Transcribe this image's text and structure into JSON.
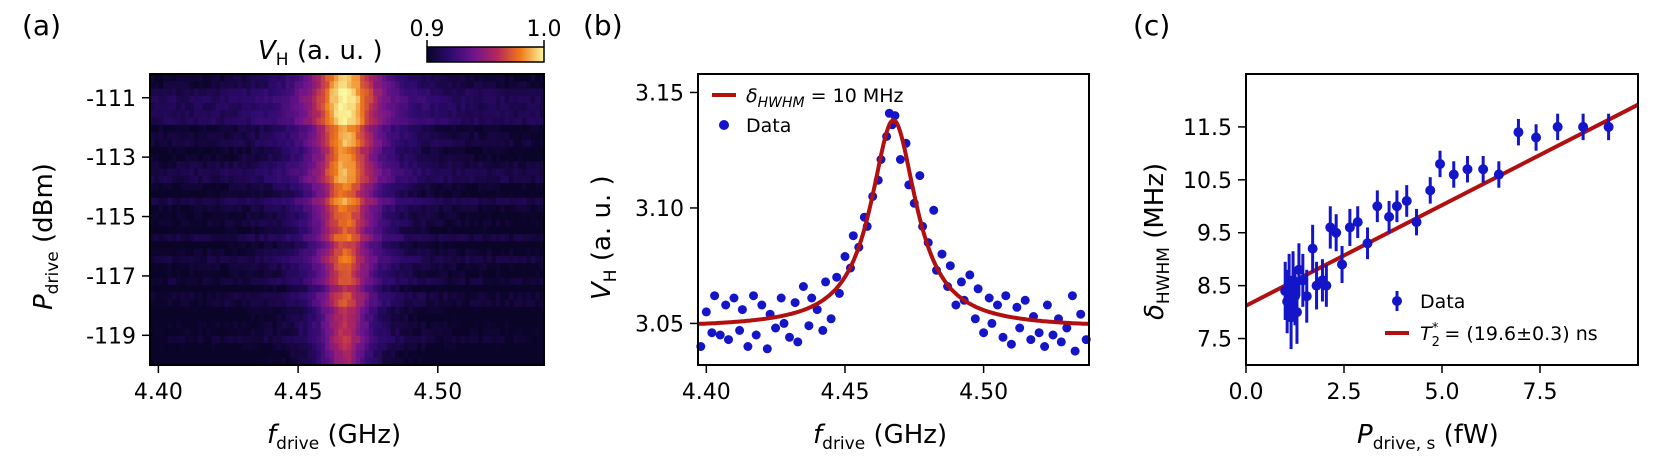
{
  "colors": {
    "data": "#1414c8",
    "fit": "#b01010"
  },
  "chart_data": [
    {
      "id": "a",
      "panel_label": "(a)",
      "type": "heatmap",
      "title": "",
      "xlabel": {
        "main": "f",
        "sub": "drive",
        "unit": "(GHz)"
      },
      "ylabel": {
        "main": "P",
        "sub": "drive",
        "unit": "(dBm)"
      },
      "xlim": [
        4.397,
        4.538
      ],
      "ylim": [
        -120,
        -110.2
      ],
      "xticks": [
        {
          "value": 4.4,
          "label": "4.40"
        },
        {
          "value": 4.45,
          "label": "4.45"
        },
        {
          "value": 4.5,
          "label": "4.50"
        }
      ],
      "yticks": [
        {
          "value": -111,
          "label": "-111"
        },
        {
          "value": -113,
          "label": "-113"
        },
        {
          "value": -115,
          "label": "-115"
        },
        {
          "value": -117,
          "label": "-117"
        },
        {
          "value": -119,
          "label": "-119"
        }
      ],
      "colormap": "inferno-like",
      "z_model": {
        "center_ghz": 4.4668,
        "floor": 0.905,
        "top_power_dbm": -110.5,
        "bottom_power_dbm": -120,
        "peak_top": 1.0,
        "peak_bottom": 0.955,
        "hwhm_top_ghz": 0.0115,
        "hwhm_bottom_ghz": 0.0082
      },
      "colorbar": {
        "label_main": "V",
        "label_sub": "H",
        "label_unit": "(a. u. )",
        "min_label": "0.9",
        "max_label": "1.0",
        "min": 0.9,
        "max": 1.0
      }
    },
    {
      "id": "b",
      "panel_label": "(b)",
      "type": "scatter",
      "xlabel": {
        "main": "f",
        "sub": "drive",
        "unit": "(GHz)"
      },
      "ylabel": {
        "main": "V",
        "sub": "H",
        "unit": "(a. u. )"
      },
      "xlim": [
        4.397,
        4.538
      ],
      "ylim": [
        3.032,
        3.158
      ],
      "xticks": [
        {
          "value": 4.4,
          "label": "4.40"
        },
        {
          "value": 4.45,
          "label": "4.45"
        },
        {
          "value": 4.5,
          "label": "4.50"
        }
      ],
      "yticks": [
        {
          "value": 3.05,
          "label": "3.05"
        },
        {
          "value": 3.1,
          "label": "3.10"
        },
        {
          "value": 3.15,
          "label": "3.15"
        }
      ],
      "legend": {
        "location": "top-left",
        "fit_label_delta": "δ",
        "fit_label_sub": "HWHM",
        "fit_label_rest": " = 10 MHz",
        "data_label": "Data"
      },
      "fit": {
        "type": "lorentzian",
        "center": 4.4675,
        "hwhm": 0.01,
        "baseline": 3.048,
        "amplitude": 0.09
      },
      "series": [
        {
          "name": "Data",
          "x": [
            4.398,
            4.4,
            4.402,
            4.403,
            4.405,
            4.407,
            4.408,
            4.41,
            4.412,
            4.413,
            4.415,
            4.417,
            4.418,
            4.42,
            4.422,
            4.423,
            4.425,
            4.427,
            4.428,
            4.43,
            4.432,
            4.433,
            4.435,
            4.437,
            4.438,
            4.44,
            4.442,
            4.443,
            4.445,
            4.447,
            4.448,
            4.45,
            4.452,
            4.453,
            4.455,
            4.457,
            4.458,
            4.46,
            4.462,
            4.463,
            4.465,
            4.466,
            4.467,
            4.468,
            4.47,
            4.472,
            4.473,
            4.475,
            4.477,
            4.478,
            4.48,
            4.482,
            4.483,
            4.485,
            4.487,
            4.488,
            4.49,
            4.492,
            4.493,
            4.495,
            4.497,
            4.498,
            4.5,
            4.502,
            4.503,
            4.505,
            4.507,
            4.508,
            4.51,
            4.512,
            4.513,
            4.515,
            4.517,
            4.518,
            4.52,
            4.522,
            4.523,
            4.525,
            4.527,
            4.528,
            4.53,
            4.532,
            4.533,
            4.535,
            4.537
          ],
          "y": [
            3.04,
            3.055,
            3.046,
            3.062,
            3.045,
            3.058,
            3.043,
            3.061,
            3.047,
            3.056,
            3.04,
            3.062,
            3.045,
            3.058,
            3.039,
            3.054,
            3.048,
            3.061,
            3.05,
            3.044,
            3.059,
            3.042,
            3.066,
            3.049,
            3.061,
            3.056,
            3.047,
            3.068,
            3.052,
            3.07,
            3.063,
            3.079,
            3.074,
            3.088,
            3.083,
            3.096,
            3.092,
            3.105,
            3.112,
            3.121,
            3.131,
            3.141,
            3.136,
            3.14,
            3.121,
            3.128,
            3.11,
            3.102,
            3.114,
            3.092,
            3.085,
            3.099,
            3.073,
            3.08,
            3.066,
            3.075,
            3.058,
            3.068,
            3.06,
            3.071,
            3.052,
            3.065,
            3.046,
            3.061,
            3.05,
            3.058,
            3.044,
            3.062,
            3.041,
            3.057,
            3.048,
            3.06,
            3.043,
            3.053,
            3.046,
            3.04,
            3.058,
            3.045,
            3.052,
            3.042,
            3.048,
            3.062,
            3.038,
            3.054,
            3.043
          ]
        }
      ]
    },
    {
      "id": "c",
      "panel_label": "(c)",
      "type": "scatter",
      "xlabel": {
        "main": "P",
        "sub": "drive, s",
        "unit": "(fW)"
      },
      "ylabel": {
        "main": "δ",
        "sub": "HWHM",
        "unit": "(MHz)"
      },
      "xlim": [
        0,
        10
      ],
      "ylim": [
        7.0,
        12.5
      ],
      "xticks": [
        {
          "value": 0,
          "label": "0.0"
        },
        {
          "value": 2.5,
          "label": "2.5"
        },
        {
          "value": 5.0,
          "label": "5.0"
        },
        {
          "value": 7.5,
          "label": "7.5"
        }
      ],
      "yticks": [
        {
          "value": 7.5,
          "label": "7.5"
        },
        {
          "value": 8.5,
          "label": "8.5"
        },
        {
          "value": 9.5,
          "label": "9.5"
        },
        {
          "value": 10.5,
          "label": "10.5"
        },
        {
          "value": 11.5,
          "label": "11.5"
        }
      ],
      "legend": {
        "location": "bottom-right",
        "data_label": "Data",
        "fit_label_main": "T",
        "fit_label_sub": "2",
        "fit_label_sup": "*",
        "fit_label_rest": " = (19.6±0.3) ns"
      },
      "fit": {
        "type": "line",
        "intercept": 8.12,
        "slope": 0.38
      },
      "series": [
        {
          "name": "Data",
          "x": [
            1.0,
            1.05,
            1.1,
            1.15,
            1.2,
            1.25,
            1.3,
            1.35,
            1.45,
            1.55,
            1.7,
            1.8,
            1.95,
            2.05,
            2.15,
            2.3,
            2.45,
            2.65,
            2.85,
            3.1,
            3.35,
            3.65,
            3.85,
            4.1,
            4.35,
            4.7,
            4.95,
            5.3,
            5.65,
            6.05,
            6.45,
            6.95,
            7.4,
            7.95,
            8.6,
            9.25
          ],
          "y": [
            8.4,
            8.2,
            8.5,
            7.9,
            8.6,
            8.3,
            8.0,
            8.8,
            8.6,
            8.3,
            9.2,
            8.5,
            8.6,
            8.5,
            9.6,
            9.5,
            8.9,
            9.6,
            9.7,
            9.3,
            10.0,
            9.8,
            10.0,
            10.1,
            9.7,
            10.3,
            10.8,
            10.6,
            10.7,
            10.7,
            10.6,
            11.4,
            11.3,
            11.5,
            11.5,
            11.5
          ],
          "err": [
            0.55,
            0.6,
            0.6,
            0.6,
            0.55,
            0.55,
            0.6,
            0.5,
            0.5,
            0.5,
            0.45,
            0.45,
            0.4,
            0.4,
            0.4,
            0.35,
            0.35,
            0.35,
            0.3,
            0.3,
            0.3,
            0.3,
            0.3,
            0.3,
            0.25,
            0.25,
            0.25,
            0.25,
            0.25,
            0.25,
            0.25,
            0.25,
            0.25,
            0.25,
            0.25,
            0.25
          ]
        }
      ]
    }
  ]
}
